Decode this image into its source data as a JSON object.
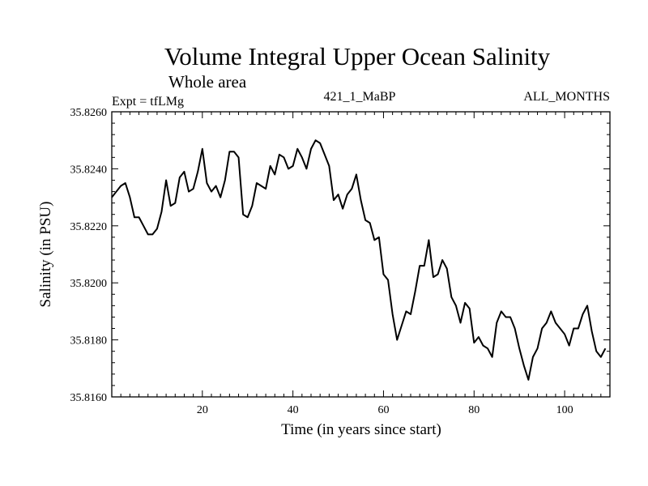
{
  "chart_data": {
    "type": "line",
    "title": "Volume Integral Upper Ocean Salinity",
    "subtitle": "Whole area",
    "experiment": "Expt = tfLMg",
    "run_id": "421_1_MaBP",
    "months": "ALL_MONTHS",
    "xlabel": "Time (in years since start)",
    "ylabel": "Salinity (in PSU)",
    "xlim": [
      0,
      110
    ],
    "ylim": [
      35.816,
      35.826
    ],
    "x_ticks": [
      20,
      40,
      60,
      80,
      100
    ],
    "y_ticks": [
      35.816,
      35.818,
      35.82,
      35.822,
      35.824,
      35.826
    ],
    "x_tick_labels": [
      "20",
      "40",
      "60",
      "80",
      "100"
    ],
    "y_tick_labels": [
      "35.8160",
      "35.8180",
      "35.8200",
      "35.8220",
      "35.8240",
      "35.8260"
    ],
    "x_start": 0,
    "x_step": 1,
    "series": [
      {
        "name": "salinity",
        "values": [
          35.823,
          35.8232,
          35.8234,
          35.8235,
          35.823,
          35.8223,
          35.8223,
          35.822,
          35.8217,
          35.8217,
          35.8219,
          35.8225,
          35.8236,
          35.8227,
          35.8228,
          35.8237,
          35.8239,
          35.8232,
          35.8233,
          35.8239,
          35.8247,
          35.8235,
          35.8232,
          35.8234,
          35.823,
          35.8236,
          35.8246,
          35.8246,
          35.8244,
          35.8224,
          35.8223,
          35.8227,
          35.8235,
          35.8234,
          35.8233,
          35.8241,
          35.8238,
          35.8245,
          35.8244,
          35.824,
          35.8241,
          35.8247,
          35.8244,
          35.824,
          35.8247,
          35.825,
          35.8249,
          35.8245,
          35.8241,
          35.8229,
          35.8231,
          35.8226,
          35.8231,
          35.8233,
          35.8238,
          35.8229,
          35.8222,
          35.8221,
          35.8215,
          35.8216,
          35.8203,
          35.8201,
          35.8189,
          35.818,
          35.8185,
          35.819,
          35.8189,
          35.8197,
          35.8206,
          35.8206,
          35.8215,
          35.8202,
          35.8203,
          35.8208,
          35.8205,
          35.8195,
          35.8192,
          35.8186,
          35.8193,
          35.8191,
          35.8179,
          35.8181,
          35.8178,
          35.8177,
          35.8174,
          35.8186,
          35.819,
          35.8188,
          35.8188,
          35.8184,
          35.8177,
          35.8171,
          35.8166,
          35.8174,
          35.8177,
          35.8184,
          35.8186,
          35.819,
          35.8186,
          35.8184,
          35.8182,
          35.8178,
          35.8184,
          35.8184,
          35.8189,
          35.8192,
          35.8183,
          35.8176,
          35.8174,
          35.8177
        ]
      }
    ]
  }
}
